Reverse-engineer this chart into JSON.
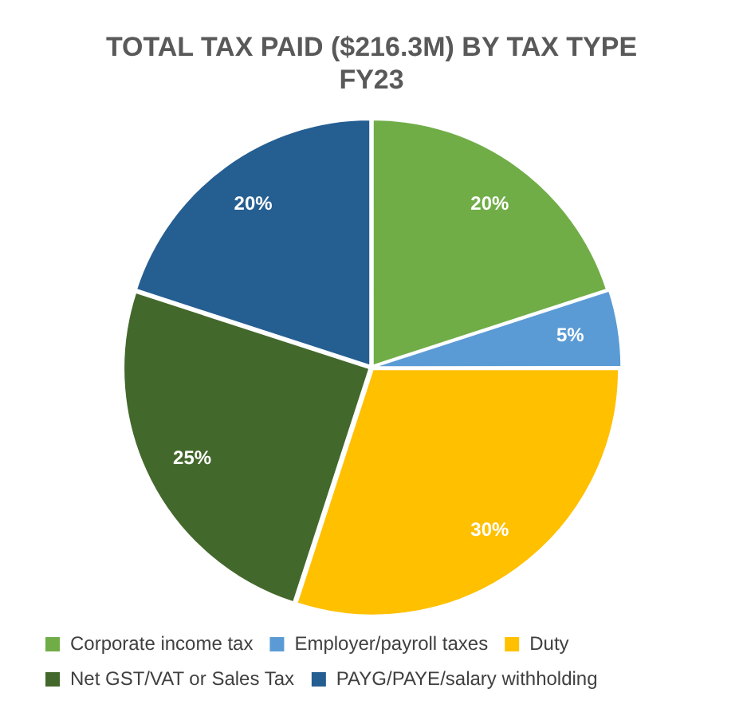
{
  "chart_data": {
    "type": "pie",
    "title": "TOTAL TAX PAID ($216.3M) BY TAX TYPE\nFY23",
    "categories": [
      "Corporate income tax",
      "Employer/payroll taxes",
      "Duty",
      "Net GST/VAT or Sales Tax",
      "PAYG/PAYE/salary withholding"
    ],
    "values": [
      20,
      5,
      30,
      25,
      20
    ],
    "value_labels": [
      "20%",
      "5%",
      "30%",
      "25%",
      "20%"
    ],
    "colors": [
      "#70ad47",
      "#5b9bd5",
      "#ffc000",
      "#43682b",
      "#255e91"
    ],
    "legend": "bottom"
  }
}
